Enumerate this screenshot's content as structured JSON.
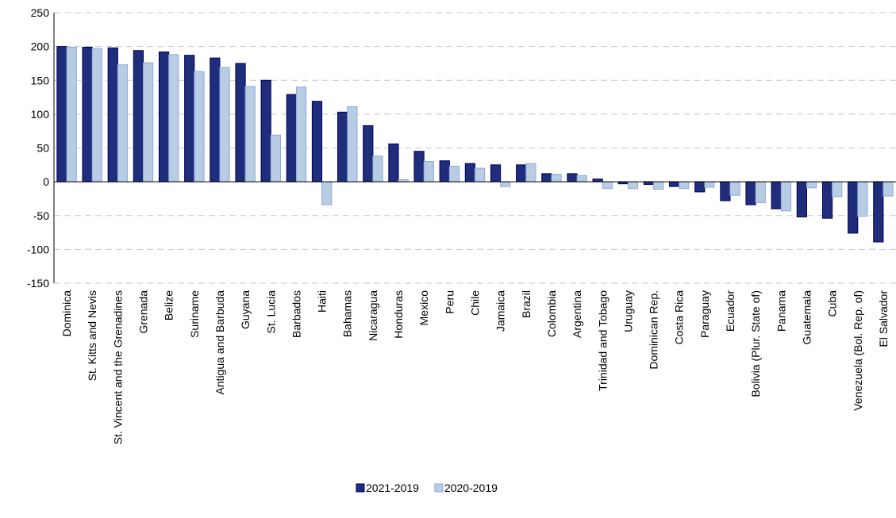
{
  "chart_data": {
    "type": "bar",
    "categories": [
      "Dominica",
      "St. Kitts and Nevis",
      "St. Vincent and the Grenadines",
      "Grenada",
      "Belize",
      "Suriname",
      "Antigua and Barbuda",
      "Guyana",
      "St. Lucia",
      "Barbados",
      "Haiti",
      "Bahamas",
      "Nicaragua",
      "Honduras",
      "Mexico",
      "Peru",
      "Chile",
      "Jamaica",
      "Brazil",
      "Colombia",
      "Argentina",
      "Trinidad and Tobago",
      "Uruguay",
      "Dominican Rep.",
      "Costa Rica",
      "Paraguay",
      "Ecuador",
      "Bolivia (Plur. State of)",
      "Panama",
      "Guatemala",
      "Cuba",
      "Venezuela (Bol. Rep. of)",
      "El Salvador"
    ],
    "series": [
      {
        "name": "2021-2019",
        "color": "#1f2d7a",
        "values": [
          200,
          199,
          198,
          194,
          192,
          187,
          183,
          175,
          150,
          129,
          119,
          103,
          83,
          56,
          45,
          31,
          27,
          25,
          25,
          12,
          12,
          4,
          -3,
          -4,
          -7,
          -15,
          -28,
          -34,
          -40,
          -52,
          -54,
          -76,
          -89
        ]
      },
      {
        "name": "2020-2019",
        "color": "#b8cce4",
        "values": [
          199,
          197,
          173,
          176,
          188,
          163,
          169,
          141,
          69,
          140,
          -34,
          111,
          38,
          3,
          30,
          23,
          20,
          -7,
          27,
          11,
          9,
          -10,
          -10,
          -11,
          -10,
          -8,
          -20,
          -31,
          -43,
          -9,
          -22,
          -51,
          -21
        ]
      }
    ],
    "ylim": [
      -150,
      250
    ],
    "yticks": [
      -150,
      -100,
      -50,
      0,
      50,
      100,
      150,
      200,
      250
    ],
    "grid": true,
    "legend": "bottom"
  }
}
